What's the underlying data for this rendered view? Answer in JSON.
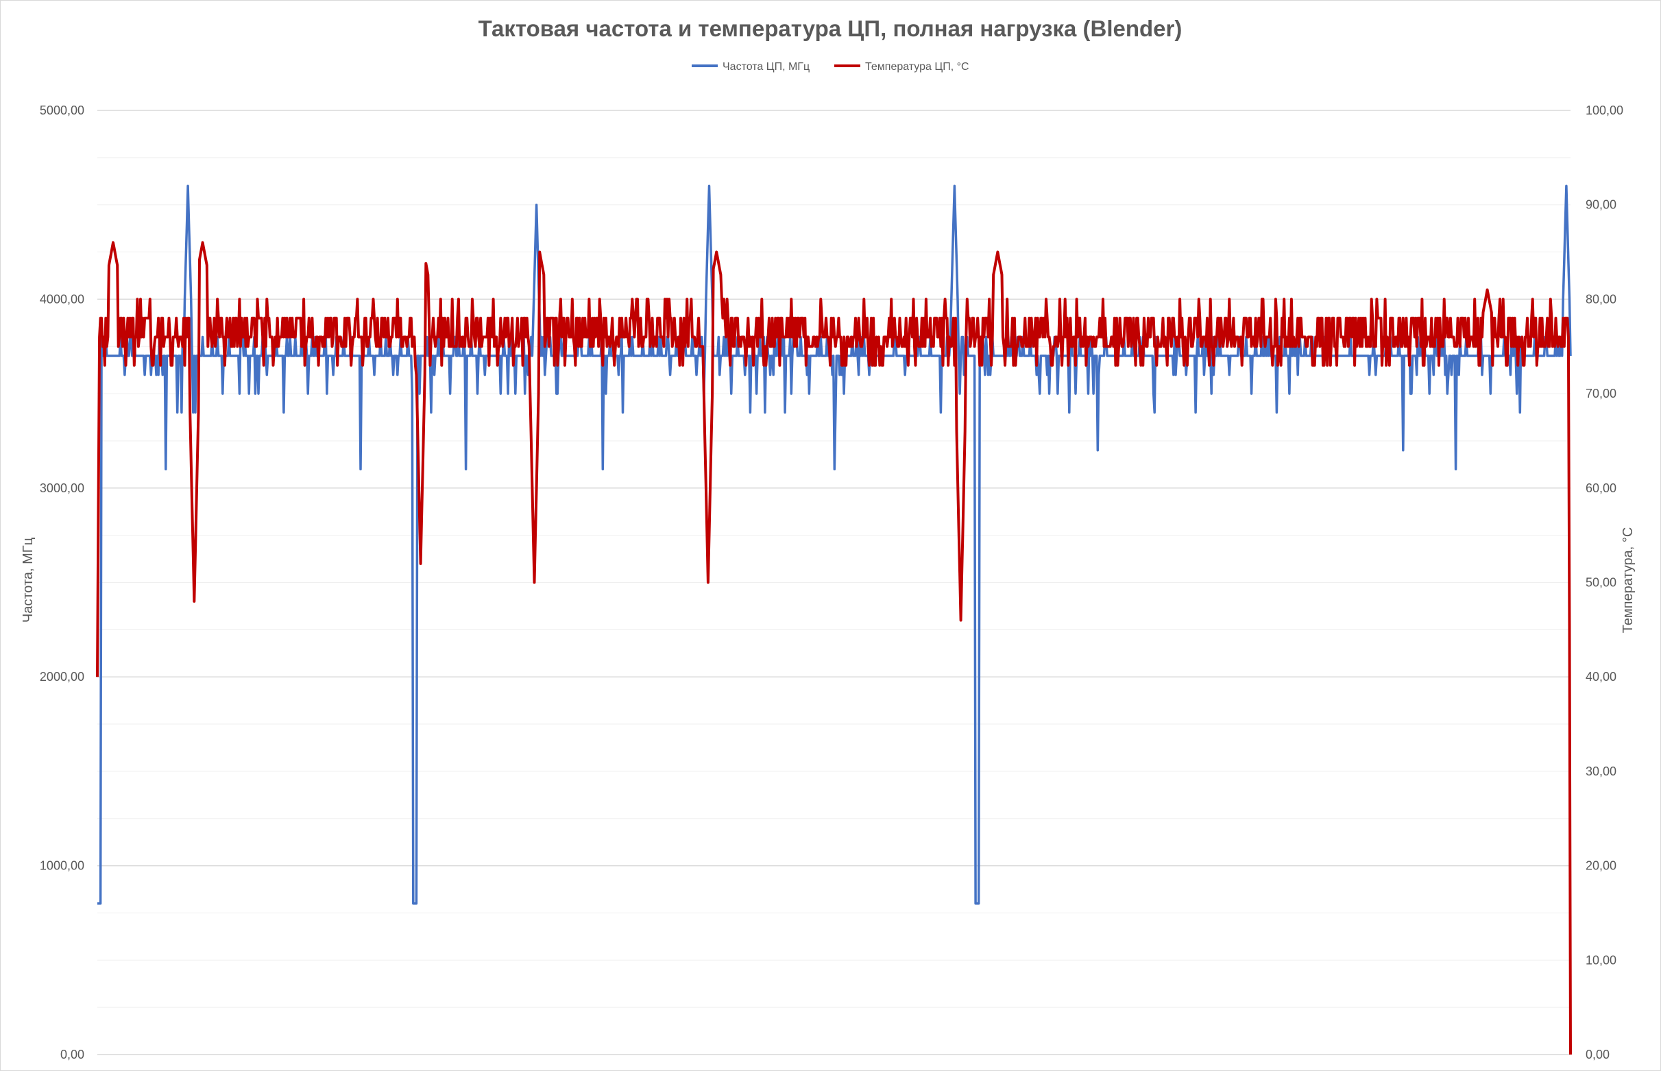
{
  "chart_data": {
    "type": "line",
    "title": "Тактовая частота и температура ЦП, полная нагрузка (Blender)",
    "ylabel": "Частота, МГц",
    "y2label": "Температура, °C",
    "ylim": [
      0,
      5000
    ],
    "y2lim": [
      0,
      100
    ],
    "y_ticks": [
      "0,00",
      "1000,00",
      "2000,00",
      "3000,00",
      "4000,00",
      "5000,00"
    ],
    "y2_ticks": [
      "0,00",
      "10,00",
      "20,00",
      "30,00",
      "40,00",
      "50,00",
      "60,00",
      "70,00",
      "80,00",
      "90,00",
      "100,00"
    ],
    "grid": true,
    "legend_position": "top",
    "x_count": 1400,
    "series": [
      {
        "name": "Частота ЦП, МГц",
        "axis": "left",
        "color": "#4472c4",
        "baseline": 3700,
        "segments": [
          {
            "start": 0,
            "end": 4,
            "value": 800
          },
          {
            "start": 4,
            "end": 300,
            "value": 3700
          },
          {
            "start": 300,
            "end": 304,
            "value": 800
          },
          {
            "start": 304,
            "end": 834,
            "value": 3700
          },
          {
            "start": 834,
            "end": 838,
            "value": 800
          },
          {
            "start": 838,
            "end": 1400,
            "value": 3700
          }
        ],
        "dips": [
          {
            "x": 65,
            "value": 3100
          },
          {
            "x": 150,
            "value": 3500
          },
          {
            "x": 250,
            "value": 3100
          },
          {
            "x": 350,
            "value": 3100
          },
          {
            "x": 480,
            "value": 3100
          },
          {
            "x": 620,
            "value": 3400
          },
          {
            "x": 700,
            "value": 3100
          },
          {
            "x": 950,
            "value": 3200
          },
          {
            "x": 1120,
            "value": 3400
          },
          {
            "x": 1240,
            "value": 3200
          },
          {
            "x": 1290,
            "value": 3100
          }
        ],
        "spikes": [
          {
            "x": 86,
            "value": 4600
          },
          {
            "x": 417,
            "value": 4500
          },
          {
            "x": 581,
            "value": 4600
          },
          {
            "x": 814,
            "value": 4600
          },
          {
            "x": 1395,
            "value": 4600
          }
        ]
      },
      {
        "name": "Температура ЦП, °C",
        "axis": "right",
        "color": "#c00000",
        "baseline": 76,
        "start_value": 40,
        "end_value": 0,
        "dips": [
          {
            "x": 92,
            "value": 48
          },
          {
            "x": 307,
            "value": 52
          },
          {
            "x": 415,
            "value": 50
          },
          {
            "x": 580,
            "value": 50
          },
          {
            "x": 820,
            "value": 46
          }
        ],
        "peaks": [
          {
            "x": 15,
            "value": 86
          },
          {
            "x": 100,
            "value": 86
          },
          {
            "x": 310,
            "value": 85
          },
          {
            "x": 420,
            "value": 85
          },
          {
            "x": 588,
            "value": 85
          },
          {
            "x": 855,
            "value": 85
          },
          {
            "x": 1320,
            "value": 81
          }
        ]
      }
    ]
  }
}
